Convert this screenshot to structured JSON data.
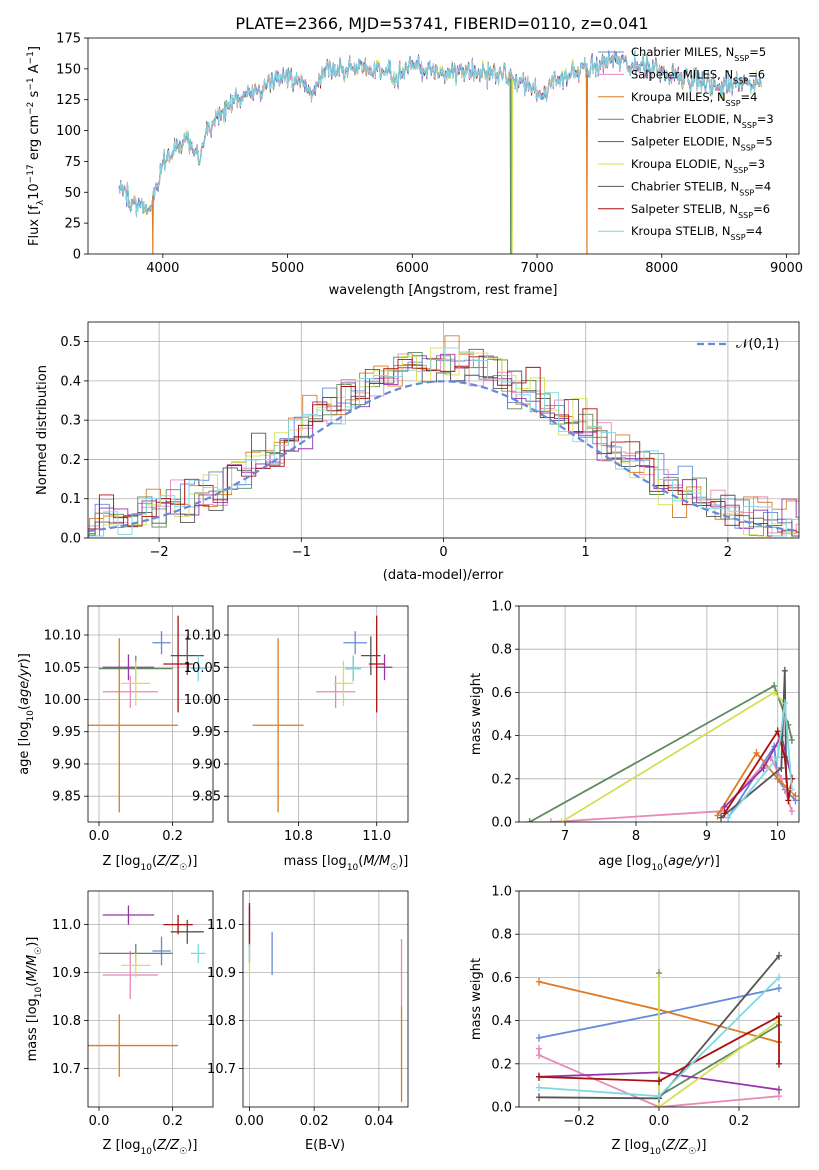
{
  "figure_title": "PLATE=2366, MJD=53741, FIBERID=0110, z=0.041",
  "models": [
    {
      "legend": "Chabrier MILES, N",
      "n": "=5",
      "color": "#6688dd"
    },
    {
      "legend": "Salpeter MILES, N",
      "n": "=6",
      "color": "#e888b8"
    },
    {
      "legend": "Kroupa MILES, N",
      "n": "=4",
      "color": "#dd7a22"
    },
    {
      "legend": "Chabrier ELODIE, N",
      "n": "=3",
      "color": "#5f8a5f"
    },
    {
      "legend": "Salpeter ELODIE, N",
      "n": "=5",
      "color": "#9933aa"
    },
    {
      "legend": "Kroupa ELODIE, N",
      "n": "=3",
      "color": "#d4e055"
    },
    {
      "legend": "Chabrier STELIB, N",
      "n": "=4",
      "color": "#555555"
    },
    {
      "legend": "Salpeter STELIB, N",
      "n": "=6",
      "color": "#aa1111"
    },
    {
      "legend": "Kroupa STELIB, N",
      "n": "=4",
      "color": "#7fd8e0"
    }
  ],
  "legend_sub": "SSP",
  "chart_data": [
    {
      "id": "spectrum",
      "type": "line",
      "xlabel": "wavelength [Angstrom, rest frame]",
      "ylabel_main": "Flux [f",
      "ylabel_sub": "λ",
      "ylabel_mid": "10",
      "ylabel_sup1": "−17",
      "ylabel_rest": " erg cm",
      "ylabel_sup2": "−2",
      "ylabel_rest2": " s",
      "ylabel_sup3": "−1",
      "ylabel_rest3": " A",
      "ylabel_sup4": "−1",
      "ylabel_end": "]",
      "xlim": [
        3400,
        9100
      ],
      "ylim": [
        0,
        175
      ],
      "xticks": [
        4000,
        5000,
        6000,
        7000,
        8000,
        9000
      ],
      "yticks": [
        0,
        25,
        50,
        75,
        100,
        125,
        150,
        175
      ],
      "continuum": [
        [
          3650,
          58
        ],
        [
          3700,
          50
        ],
        [
          3750,
          42
        ],
        [
          3800,
          40
        ],
        [
          3850,
          38
        ],
        [
          3880,
          35
        ],
        [
          3900,
          42
        ],
        [
          3950,
          55
        ],
        [
          4000,
          72
        ],
        [
          4050,
          80
        ],
        [
          4100,
          85
        ],
        [
          4150,
          88
        ],
        [
          4200,
          92
        ],
        [
          4250,
          85
        ],
        [
          4300,
          80
        ],
        [
          4350,
          98
        ],
        [
          4400,
          105
        ],
        [
          4450,
          112
        ],
        [
          4500,
          118
        ],
        [
          4600,
          125
        ],
        [
          4700,
          130
        ],
        [
          4800,
          135
        ],
        [
          4900,
          140
        ],
        [
          5000,
          144
        ],
        [
          5100,
          142
        ],
        [
          5150,
          138
        ],
        [
          5200,
          128
        ],
        [
          5250,
          140
        ],
        [
          5300,
          150
        ],
        [
          5400,
          153
        ],
        [
          5500,
          152
        ],
        [
          5600,
          152
        ],
        [
          5700,
          150
        ],
        [
          5800,
          150
        ],
        [
          5890,
          141
        ],
        [
          5950,
          150
        ],
        [
          6000,
          152
        ],
        [
          6100,
          150
        ],
        [
          6200,
          148
        ],
        [
          6300,
          147
        ],
        [
          6400,
          146
        ],
        [
          6500,
          148
        ],
        [
          6563,
          147
        ],
        [
          6700,
          145
        ],
        [
          6800,
          142
        ],
        [
          6900,
          138
        ],
        [
          7000,
          132
        ],
        [
          7050,
          128
        ],
        [
          7100,
          135
        ],
        [
          7200,
          142
        ],
        [
          7300,
          148
        ],
        [
          7400,
          150
        ],
        [
          7500,
          155
        ],
        [
          7600,
          156
        ],
        [
          7700,
          154
        ],
        [
          7800,
          152
        ],
        [
          7900,
          150
        ],
        [
          8000,
          148
        ],
        [
          8100,
          145
        ],
        [
          8200,
          143
        ],
        [
          8300,
          140
        ],
        [
          8400,
          138
        ],
        [
          8500,
          135
        ],
        [
          8600,
          140
        ],
        [
          8700,
          138
        ],
        [
          8800,
          136
        ]
      ],
      "dropouts": [
        {
          "model": 2,
          "x": 3920
        },
        {
          "model": 3,
          "x": 6790
        },
        {
          "model": 5,
          "x": 6800
        },
        {
          "model": 2,
          "x": 7400
        }
      ]
    },
    {
      "id": "residuals",
      "type": "histogram",
      "xlabel": "(data-model)/error",
      "ylabel": "Normed distribution",
      "xlim": [
        -2.5,
        2.5
      ],
      "ylim": [
        0,
        0.55
      ],
      "xticks": [
        -2,
        -1,
        0,
        1,
        2
      ],
      "yticks": [
        0.0,
        0.1,
        0.2,
        0.3,
        0.4,
        0.5
      ],
      "bin_width": 0.1,
      "reference_label": "𝒩(0,1)",
      "reference_color": "#6688dd"
    },
    {
      "id": "age_vs_Z",
      "type": "scatter",
      "xlabel": "Z [log10(Z/Z☉)]",
      "ylabel": "age  [log10(age/yr)]",
      "xlim": [
        -0.03,
        0.31
      ],
      "ylim": [
        9.81,
        10.145
      ],
      "xticks": [
        0.0,
        0.2
      ],
      "yticks": [
        9.85,
        9.9,
        9.95,
        10.0,
        10.05,
        10.1
      ],
      "points": [
        {
          "x": 0.17,
          "y": 10.088,
          "xerr": 0.025,
          "yerr": 0.018
        },
        {
          "x": 0.085,
          "y": 10.012,
          "xerr": 0.075,
          "yerr": 0.025
        },
        {
          "x": 0.055,
          "y": 9.96,
          "xerr": 0.16,
          "yerr": 0.135
        },
        {
          "x": 0.1,
          "y": 10.048,
          "xerr": 0.1,
          "yerr": 0.02
        },
        {
          "x": 0.08,
          "y": 10.05,
          "xerr": 0.07,
          "yerr": 0.02
        },
        {
          "x": 0.1,
          "y": 10.025,
          "xerr": 0.04,
          "yerr": 0.035
        },
        {
          "x": 0.24,
          "y": 10.068,
          "xerr": 0.045,
          "yerr": 0.03
        },
        {
          "x": 0.215,
          "y": 10.055,
          "xerr": 0.04,
          "yerr": 0.075
        },
        {
          "x": 0.27,
          "y": 10.048,
          "xerr": 0.02,
          "yerr": 0.02
        }
      ]
    },
    {
      "id": "age_vs_mass",
      "type": "scatter",
      "xlabel": "mass [log10(M/M☉)]",
      "xlim": [
        10.62,
        11.08
      ],
      "ylim": [
        9.81,
        10.145
      ],
      "xticks": [
        10.8,
        11.0
      ],
      "yticks": [
        9.85,
        9.9,
        9.95,
        10.0,
        10.05,
        10.1
      ],
      "points": [
        {
          "x": 10.945,
          "y": 10.088,
          "xerr": 0.03,
          "yerr": 0.018
        },
        {
          "x": 10.895,
          "y": 10.012,
          "xerr": 0.05,
          "yerr": 0.025
        },
        {
          "x": 10.748,
          "y": 9.96,
          "xerr": 0.065,
          "yerr": 0.135
        },
        {
          "x": 10.94,
          "y": 10.048,
          "xerr": 0.02,
          "yerr": 0.02
        },
        {
          "x": 11.02,
          "y": 10.05,
          "xerr": 0.02,
          "yerr": 0.02
        },
        {
          "x": 10.915,
          "y": 10.025,
          "xerr": 0.025,
          "yerr": 0.035
        },
        {
          "x": 10.985,
          "y": 10.068,
          "xerr": 0.025,
          "yerr": 0.03
        },
        {
          "x": 11.0,
          "y": 10.055,
          "xerr": 0.02,
          "yerr": 0.075
        },
        {
          "x": 10.94,
          "y": 10.048,
          "xerr": 0.02,
          "yerr": 0.02
        }
      ]
    },
    {
      "id": "weight_vs_age",
      "type": "line",
      "xlabel": "age  [log10(age/yr)]",
      "ylabel": "mass weight",
      "xlim": [
        6.35,
        10.3
      ],
      "ylim": [
        0,
        1.0
      ],
      "xticks": [
        7,
        8,
        9,
        10
      ],
      "yticks": [
        0.0,
        0.2,
        0.4,
        0.6,
        0.8,
        1.0
      ],
      "series": [
        {
          "model": 0,
          "x": [
            9.3,
            9.95,
            10.0,
            10.1,
            10.25
          ],
          "y": [
            0.02,
            0.35,
            0.2,
            0.15,
            0.1
          ]
        },
        {
          "model": 1,
          "x": [
            6.8,
            9.2,
            9.9,
            10.05,
            10.2
          ],
          "y": [
            0.0,
            0.05,
            0.3,
            0.2,
            0.05
          ]
        },
        {
          "model": 2,
          "x": [
            9.15,
            9.7,
            10.0,
            10.25
          ],
          "y": [
            0.03,
            0.32,
            0.2,
            0.12
          ]
        },
        {
          "model": 3,
          "x": [
            6.5,
            9.95,
            10.15,
            10.2
          ],
          "y": [
            0.0,
            0.63,
            0.45,
            0.38
          ]
        },
        {
          "model": 4,
          "x": [
            9.25,
            9.8,
            10.05,
            10.2
          ],
          "y": [
            0.07,
            0.25,
            0.4,
            0.2
          ]
        },
        {
          "model": 5,
          "x": [
            6.95,
            9.95,
            10.1
          ],
          "y": [
            0.0,
            0.6,
            0.55
          ]
        },
        {
          "model": 6,
          "x": [
            9.2,
            10.05,
            10.1,
            10.12
          ],
          "y": [
            0.02,
            0.25,
            0.7,
            0.2
          ]
        },
        {
          "model": 7,
          "x": [
            9.25,
            10.0,
            10.1,
            10.15,
            10.2
          ],
          "y": [
            0.04,
            0.42,
            0.3,
            0.1,
            0.2
          ]
        },
        {
          "model": 8,
          "x": [
            9.3,
            10.0,
            10.1,
            10.2
          ],
          "y": [
            0.02,
            0.3,
            0.55,
            0.15
          ]
        }
      ]
    },
    {
      "id": "mass_vs_Z",
      "type": "scatter",
      "xlabel": "Z [log10(Z/Z☉)]",
      "ylabel": "mass [log10(M/M☉)]",
      "xlim": [
        -0.03,
        0.31
      ],
      "ylim": [
        10.62,
        11.07
      ],
      "xticks": [
        0.0,
        0.2
      ],
      "yticks": [
        10.7,
        10.8,
        10.9,
        11.0
      ],
      "points": [
        {
          "x": 0.17,
          "y": 10.945,
          "xerr": 0.025,
          "yerr": 0.03
        },
        {
          "x": 0.085,
          "y": 10.895,
          "xerr": 0.075,
          "yerr": 0.05
        },
        {
          "x": 0.055,
          "y": 10.748,
          "xerr": 0.16,
          "yerr": 0.065
        },
        {
          "x": 0.1,
          "y": 10.94,
          "xerr": 0.1,
          "yerr": 0.02
        },
        {
          "x": 0.08,
          "y": 11.02,
          "xerr": 0.07,
          "yerr": 0.02
        },
        {
          "x": 0.1,
          "y": 10.915,
          "xerr": 0.04,
          "yerr": 0.025
        },
        {
          "x": 0.24,
          "y": 10.985,
          "xerr": 0.045,
          "yerr": 0.025
        },
        {
          "x": 0.215,
          "y": 11.0,
          "xerr": 0.04,
          "yerr": 0.02
        },
        {
          "x": 0.27,
          "y": 10.94,
          "xerr": 0.02,
          "yerr": 0.02
        }
      ]
    },
    {
      "id": "mass_vs_EBV",
      "type": "scatter",
      "xlabel": "E(B-V)",
      "xlim": [
        -0.002,
        0.049
      ],
      "ylim": [
        10.62,
        11.07
      ],
      "xticks": [
        0.0,
        0.02,
        0.04
      ],
      "yticks": [
        10.7,
        10.8,
        10.9,
        11.0
      ],
      "points": [
        {
          "x": 0.007,
          "y": 10.94,
          "xerr": 0,
          "yerr": 0.045
        },
        {
          "x": 0.047,
          "y": 10.9,
          "xerr": 0,
          "yerr": 0.07
        },
        {
          "x": 0.047,
          "y": 10.73,
          "xerr": 0,
          "yerr": 0.1
        },
        {
          "x": 0.0,
          "y": 10.94,
          "xerr": 0,
          "yerr": 0.02
        },
        {
          "x": 0.0,
          "y": 11.02,
          "xerr": 0,
          "yerr": 0.02
        },
        {
          "x": 0.0,
          "y": 10.91,
          "xerr": 0,
          "yerr": 0.025
        },
        {
          "x": 0.0,
          "y": 10.985,
          "xerr": 0,
          "yerr": 0.025
        },
        {
          "x": 0.0,
          "y": 11.0,
          "xerr": 0,
          "yerr": 0.045
        },
        {
          "x": 0.0,
          "y": 10.94,
          "xerr": 0,
          "yerr": 0.02
        }
      ]
    },
    {
      "id": "weight_vs_Z",
      "type": "line",
      "xlabel": "Z [log10(Z/Z☉)]",
      "ylabel": "mass weight",
      "xlim": [
        -0.35,
        0.35
      ],
      "ylim": [
        0,
        1.0
      ],
      "xticks": [
        -0.2,
        0.0,
        0.2
      ],
      "yticks": [
        0.0,
        0.2,
        0.4,
        0.6,
        0.8,
        1.0
      ],
      "series": [
        {
          "model": 0,
          "x": [
            -0.3,
            0.0,
            0.3
          ],
          "y": [
            0.32,
            0.43,
            0.55
          ]
        },
        {
          "model": 1,
          "x": [
            -0.3,
            -0.3,
            0.0,
            0.3
          ],
          "y": [
            0.27,
            0.24,
            0.0,
            0.05
          ]
        },
        {
          "model": 2,
          "x": [
            -0.3,
            0.0,
            0.3
          ],
          "y": [
            0.58,
            0.45,
            0.3
          ]
        },
        {
          "model": 3,
          "x": [
            0.0,
            0.0,
            0.3
          ],
          "y": [
            0.62,
            0.05,
            0.38
          ]
        },
        {
          "model": 4,
          "x": [
            -0.3,
            0.0,
            0.3
          ],
          "y": [
            0.14,
            0.16,
            0.08
          ]
        },
        {
          "model": 5,
          "x": [
            0.0,
            0.0,
            0.3
          ],
          "y": [
            0.6,
            0.0,
            0.4
          ]
        },
        {
          "model": 6,
          "x": [
            -0.3,
            0.0,
            0.3
          ],
          "y": [
            0.045,
            0.04,
            0.7
          ]
        },
        {
          "model": 7,
          "x": [
            -0.3,
            0.0,
            0.3,
            0.3
          ],
          "y": [
            0.14,
            0.12,
            0.42,
            0.2
          ]
        },
        {
          "model": 8,
          "x": [
            -0.3,
            0.0,
            0.3
          ],
          "y": [
            0.09,
            0.05,
            0.6
          ]
        }
      ]
    }
  ]
}
